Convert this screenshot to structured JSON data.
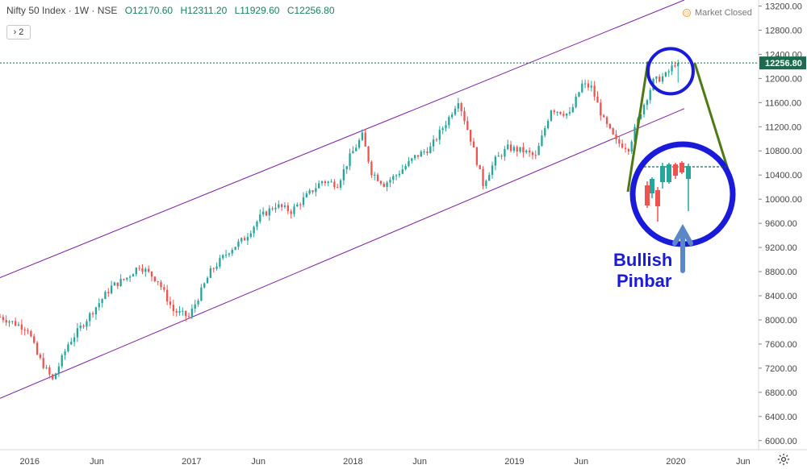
{
  "header": {
    "symbol": "Nifty 50 Index · 1W · NSE",
    "open": "O12170.60",
    "high": "H12311.20",
    "low": "L11929.60",
    "close": "C12256.80",
    "collapse_button": "› 2",
    "market_status": "Market Closed",
    "market_icon": "clock-icon"
  },
  "colors": {
    "up": "#26a69a",
    "down": "#ef5350",
    "channel": "#7b1fa2",
    "annotation_circle": "#1a1adb",
    "annotation_lines": "#4f7a12",
    "arrow": "#5b87c9",
    "last_price_bg": "#1d6b4f"
  },
  "annotation": {
    "line1": "Bullish",
    "line2": "Pinbar"
  },
  "last_price_label": "12256.80",
  "chart_data": {
    "type": "candlestick",
    "title": "Nifty 50 Index · 1W · NSE",
    "xlabel": "",
    "ylabel": "",
    "x_ticks": [
      "2016",
      "Jun",
      "2017",
      "Jun",
      "2018",
      "Jun",
      "2019",
      "Jun",
      "2020",
      "Jun"
    ],
    "x_tick_dates": [
      "2016-01-01",
      "2016-06-01",
      "2017-01-01",
      "2017-06-01",
      "2018-01-01",
      "2018-06-01",
      "2019-01-01",
      "2019-06-01",
      "2020-01-01",
      "2020-06-01"
    ],
    "y_ticks": [
      6000,
      6400,
      6800,
      7200,
      7600,
      8000,
      8400,
      8800,
      9200,
      9600,
      10000,
      10400,
      10800,
      11200,
      11600,
      12000,
      12400,
      12800,
      13200
    ],
    "ylim": [
      5850,
      13300
    ],
    "xlim": [
      "2015-10-26",
      "2020-07-06"
    ],
    "last_price": 12256.8,
    "grid": false,
    "trend_close": [
      [
        "2015-10-26",
        8050
      ],
      [
        "2015-12-28",
        7850
      ],
      [
        "2016-01-18",
        7420
      ],
      [
        "2016-02-22",
        7000
      ],
      [
        "2016-03-28",
        7600
      ],
      [
        "2016-05-23",
        8150
      ],
      [
        "2016-07-04",
        8550
      ],
      [
        "2016-08-08",
        8700
      ],
      [
        "2016-09-05",
        8900
      ],
      [
        "2016-10-17",
        8650
      ],
      [
        "2016-11-21",
        8150
      ],
      [
        "2016-12-26",
        8050
      ],
      [
        "2017-02-13",
        8800
      ],
      [
        "2017-03-27",
        9150
      ],
      [
        "2017-05-01",
        9350
      ],
      [
        "2017-06-05",
        9700
      ],
      [
        "2017-07-10",
        9900
      ],
      [
        "2017-08-14",
        9800
      ],
      [
        "2017-09-18",
        10050
      ],
      [
        "2017-10-23",
        10300
      ],
      [
        "2017-11-27",
        10250
      ],
      [
        "2017-12-25",
        10700
      ],
      [
        "2018-01-22",
        11050
      ],
      [
        "2018-02-12",
        10450
      ],
      [
        "2018-03-12",
        10250
      ],
      [
        "2018-04-09",
        10400
      ],
      [
        "2018-05-21",
        10700
      ],
      [
        "2018-06-25",
        10850
      ],
      [
        "2018-08-06",
        11350
      ],
      [
        "2018-08-27",
        11650
      ],
      [
        "2018-09-24",
        11000
      ],
      [
        "2018-10-22",
        10250
      ],
      [
        "2018-11-19",
        10650
      ],
      [
        "2018-12-17",
        10850
      ],
      [
        "2019-01-21",
        10800
      ],
      [
        "2019-02-18",
        10700
      ],
      [
        "2019-03-25",
        11500
      ],
      [
        "2019-05-06",
        11400
      ],
      [
        "2019-06-03",
        11900
      ],
      [
        "2019-06-24",
        11850
      ],
      [
        "2019-07-22",
        11300
      ],
      [
        "2019-08-19",
        10950
      ],
      [
        "2019-09-16",
        10850
      ],
      [
        "2019-10-14",
        11450
      ],
      [
        "2019-11-11",
        11950
      ],
      [
        "2019-12-09",
        12050
      ],
      [
        "2019-12-30",
        12250
      ],
      [
        "2020-01-06",
        12256.8
      ]
    ],
    "channel_lines": [
      {
        "from": [
          "2015-10-26",
          8700
        ],
        "to": [
          "2020-01-20",
          13300
        ]
      },
      {
        "from": [
          "2015-10-26",
          6700
        ],
        "to": [
          "2020-01-20",
          11500
        ]
      }
    ]
  }
}
